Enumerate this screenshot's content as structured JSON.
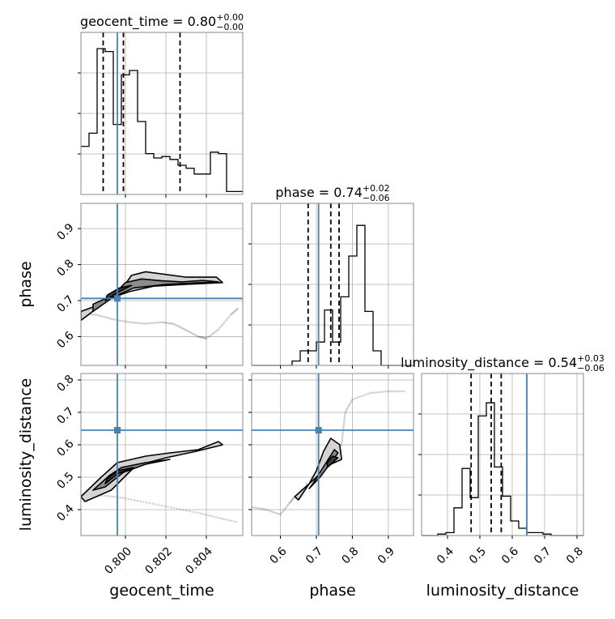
{
  "chart_data": {
    "type": "corner",
    "parameters": [
      {
        "name": "geocent_time",
        "xlabel": "geocent_time",
        "ylabel": "",
        "range": [
          0.7978,
          0.8058
        ],
        "ticks": [
          0.8,
          0.802,
          0.804
        ],
        "tick_labels": [
          "0.800",
          "0.802",
          "0.804"
        ],
        "title_main": "geocent_time = 0.80",
        "title_sup": "+0.00",
        "title_sub": "−0.00",
        "quantiles": [
          0.7989,
          0.7999,
          0.8027
        ],
        "truth": 0.7996,
        "hist": [
          0.33,
          0.42,
          1.0,
          0.98,
          0.48,
          0.82,
          0.85,
          0.5,
          0.28,
          0.25,
          0.26,
          0.24,
          0.2,
          0.18,
          0.14,
          0.14,
          0.29,
          0.28,
          0.02,
          0.02
        ]
      },
      {
        "name": "phase",
        "xlabel": "phase",
        "ylabel": "phase",
        "range": [
          0.52,
          0.97
        ],
        "ticks": [
          0.6,
          0.7,
          0.8,
          0.9
        ],
        "tick_labels": [
          "0.6",
          "0.7",
          "0.8",
          "0.9"
        ],
        "title_main": "phase = 0.74",
        "title_sup": "+0.02",
        "title_sub": "−0.06",
        "quantiles": [
          0.677,
          0.74,
          0.763
        ],
        "truth": 0.706,
        "hist": [
          0.0,
          0.0,
          0.0,
          0.0,
          0.0,
          0.03,
          0.1,
          0.1,
          0.16,
          0.38,
          0.16,
          0.47,
          0.75,
          0.96,
          0.37,
          0.1,
          0.0,
          0.0,
          0.0,
          0.0
        ]
      },
      {
        "name": "luminosity_distance",
        "xlabel": "luminosity_distance",
        "ylabel": "luminosity_distance",
        "range": [
          0.32,
          0.82
        ],
        "ticks": [
          0.4,
          0.5,
          0.6,
          0.7,
          0.8
        ],
        "tick_labels": [
          "0.4",
          "0.5",
          "0.6",
          "0.7",
          "0.8"
        ],
        "title_main": "luminosity_distance = 0.54",
        "title_sup": "+0.03",
        "title_sub": "−0.06",
        "quantiles": [
          0.473,
          0.535,
          0.566
        ],
        "truth": 0.645,
        "hist": [
          0.0,
          0.0,
          0.01,
          0.02,
          0.19,
          0.46,
          0.26,
          0.82,
          0.91,
          0.47,
          0.27,
          0.1,
          0.05,
          0.02,
          0.02,
          0.01,
          0.0,
          0.0,
          0.0,
          0.0
        ]
      }
    ],
    "pairs": [
      {
        "x": "geocent_time",
        "y": "phase",
        "truth": [
          0.7996,
          0.706
        ],
        "contours": [
          {
            "level": "outer",
            "points": [
              [
                0.7978,
                0.67
              ],
              [
                0.7988,
                0.69
              ],
              [
                0.7998,
                0.73
              ],
              [
                0.8003,
                0.77
              ],
              [
                0.801,
                0.78
              ],
              [
                0.803,
                0.765
              ],
              [
                0.8045,
                0.765
              ],
              [
                0.8048,
                0.75
              ],
              [
                0.803,
                0.745
              ],
              [
                0.8014,
                0.74
              ],
              [
                0.8002,
                0.725
              ],
              [
                0.7992,
                0.705
              ],
              [
                0.7978,
                0.645
              ]
            ]
          },
          {
            "level": "mid",
            "points": [
              [
                0.7984,
                0.69
              ],
              [
                0.7994,
                0.715
              ],
              [
                0.8,
                0.75
              ],
              [
                0.8008,
                0.76
              ],
              [
                0.8018,
                0.755
              ],
              [
                0.8028,
                0.752
              ],
              [
                0.8038,
                0.756
              ],
              [
                0.8046,
                0.752
              ],
              [
                0.8035,
                0.749
              ],
              [
                0.802,
                0.745
              ],
              [
                0.8004,
                0.735
              ],
              [
                0.7994,
                0.71
              ],
              [
                0.7984,
                0.67
              ]
            ]
          },
          {
            "level": "inner",
            "points": [
              [
                0.799,
                0.7
              ],
              [
                0.7997,
                0.725
              ],
              [
                0.8003,
                0.742
              ],
              [
                0.7997,
                0.735
              ],
              [
                0.7991,
                0.715
              ]
            ]
          }
        ],
        "samples_trail": [
          [
            0.7978,
            0.665
          ],
          [
            0.7986,
            0.66
          ],
          [
            0.7994,
            0.648
          ],
          [
            0.8002,
            0.64
          ],
          [
            0.801,
            0.636
          ],
          [
            0.8018,
            0.64
          ],
          [
            0.8024,
            0.635
          ],
          [
            0.803,
            0.618
          ],
          [
            0.8036,
            0.6
          ],
          [
            0.804,
            0.595
          ],
          [
            0.8046,
            0.62
          ],
          [
            0.8052,
            0.66
          ],
          [
            0.8056,
            0.68
          ]
        ]
      },
      {
        "x": "geocent_time",
        "y": "luminosity_distance",
        "truth": [
          0.7996,
          0.645
        ],
        "contours": [
          {
            "level": "outer",
            "points": [
              [
                0.7978,
                0.44
              ],
              [
                0.7988,
                0.5
              ],
              [
                0.7996,
                0.545
              ],
              [
                0.801,
                0.565
              ],
              [
                0.8022,
                0.575
              ],
              [
                0.8036,
                0.585
              ],
              [
                0.8046,
                0.61
              ],
              [
                0.8048,
                0.6
              ],
              [
                0.8035,
                0.58
              ],
              [
                0.802,
                0.56
              ],
              [
                0.8005,
                0.535
              ],
              [
                0.7993,
                0.46
              ],
              [
                0.798,
                0.425
              ]
            ]
          },
          {
            "level": "mid",
            "points": [
              [
                0.7984,
                0.46
              ],
              [
                0.7992,
                0.505
              ],
              [
                0.7998,
                0.53
              ],
              [
                0.801,
                0.545
              ],
              [
                0.8022,
                0.555
              ],
              [
                0.801,
                0.54
              ],
              [
                0.7999,
                0.515
              ],
              [
                0.799,
                0.47
              ]
            ]
          },
          {
            "level": "inner",
            "points": [
              [
                0.799,
                0.48
              ],
              [
                0.7996,
                0.51
              ],
              [
                0.8004,
                0.53
              ],
              [
                0.7996,
                0.52
              ],
              [
                0.7991,
                0.495
              ]
            ]
          }
        ],
        "samples_trail": [
          [
            0.7978,
            0.445
          ],
          [
            0.799,
            0.443
          ],
          [
            0.8,
            0.435
          ],
          [
            0.8012,
            0.42
          ],
          [
            0.8024,
            0.405
          ],
          [
            0.8036,
            0.39
          ],
          [
            0.8046,
            0.375
          ],
          [
            0.8056,
            0.36
          ]
        ]
      },
      {
        "x": "phase",
        "y": "luminosity_distance",
        "truth": [
          0.706,
          0.645
        ],
        "contours": [
          {
            "level": "outer",
            "points": [
              [
                0.64,
                0.44
              ],
              [
                0.66,
                0.46
              ],
              [
                0.69,
                0.49
              ],
              [
                0.72,
                0.52
              ],
              [
                0.74,
                0.54
              ],
              [
                0.77,
                0.555
              ],
              [
                0.765,
                0.6
              ],
              [
                0.74,
                0.62
              ],
              [
                0.72,
                0.58
              ],
              [
                0.7,
                0.52
              ],
              [
                0.68,
                0.48
              ],
              [
                0.65,
                0.43
              ]
            ]
          },
          {
            "level": "mid",
            "points": [
              [
                0.68,
                0.465
              ],
              [
                0.71,
                0.5
              ],
              [
                0.73,
                0.53
              ],
              [
                0.75,
                0.56
              ],
              [
                0.76,
                0.575
              ],
              [
                0.75,
                0.585
              ],
              [
                0.73,
                0.55
              ],
              [
                0.71,
                0.515
              ],
              [
                0.69,
                0.48
              ]
            ]
          },
          {
            "level": "inner",
            "points": [
              [
                0.73,
                0.53
              ],
              [
                0.75,
                0.55
              ],
              [
                0.76,
                0.56
              ],
              [
                0.745,
                0.565
              ],
              [
                0.73,
                0.545
              ]
            ]
          }
        ],
        "samples_trail": [
          [
            0.52,
            0.408
          ],
          [
            0.56,
            0.4
          ],
          [
            0.6,
            0.385
          ],
          [
            0.625,
            0.42
          ],
          [
            0.64,
            0.44
          ],
          [
            0.77,
            0.6
          ],
          [
            0.775,
            0.65
          ],
          [
            0.78,
            0.7
          ],
          [
            0.8,
            0.74
          ],
          [
            0.85,
            0.76
          ],
          [
            0.9,
            0.765
          ],
          [
            0.95,
            0.765
          ]
        ]
      }
    ],
    "colors": {
      "truth": "#4682b4",
      "quantile": "#000000",
      "hist": "#000000",
      "contour_fill_outer": "#d4d4d4",
      "contour_fill_mid": "#8c8c8c",
      "contour_fill_inner": "#3a3a3a",
      "grid": "#b0b0b0"
    },
    "grid": true
  }
}
